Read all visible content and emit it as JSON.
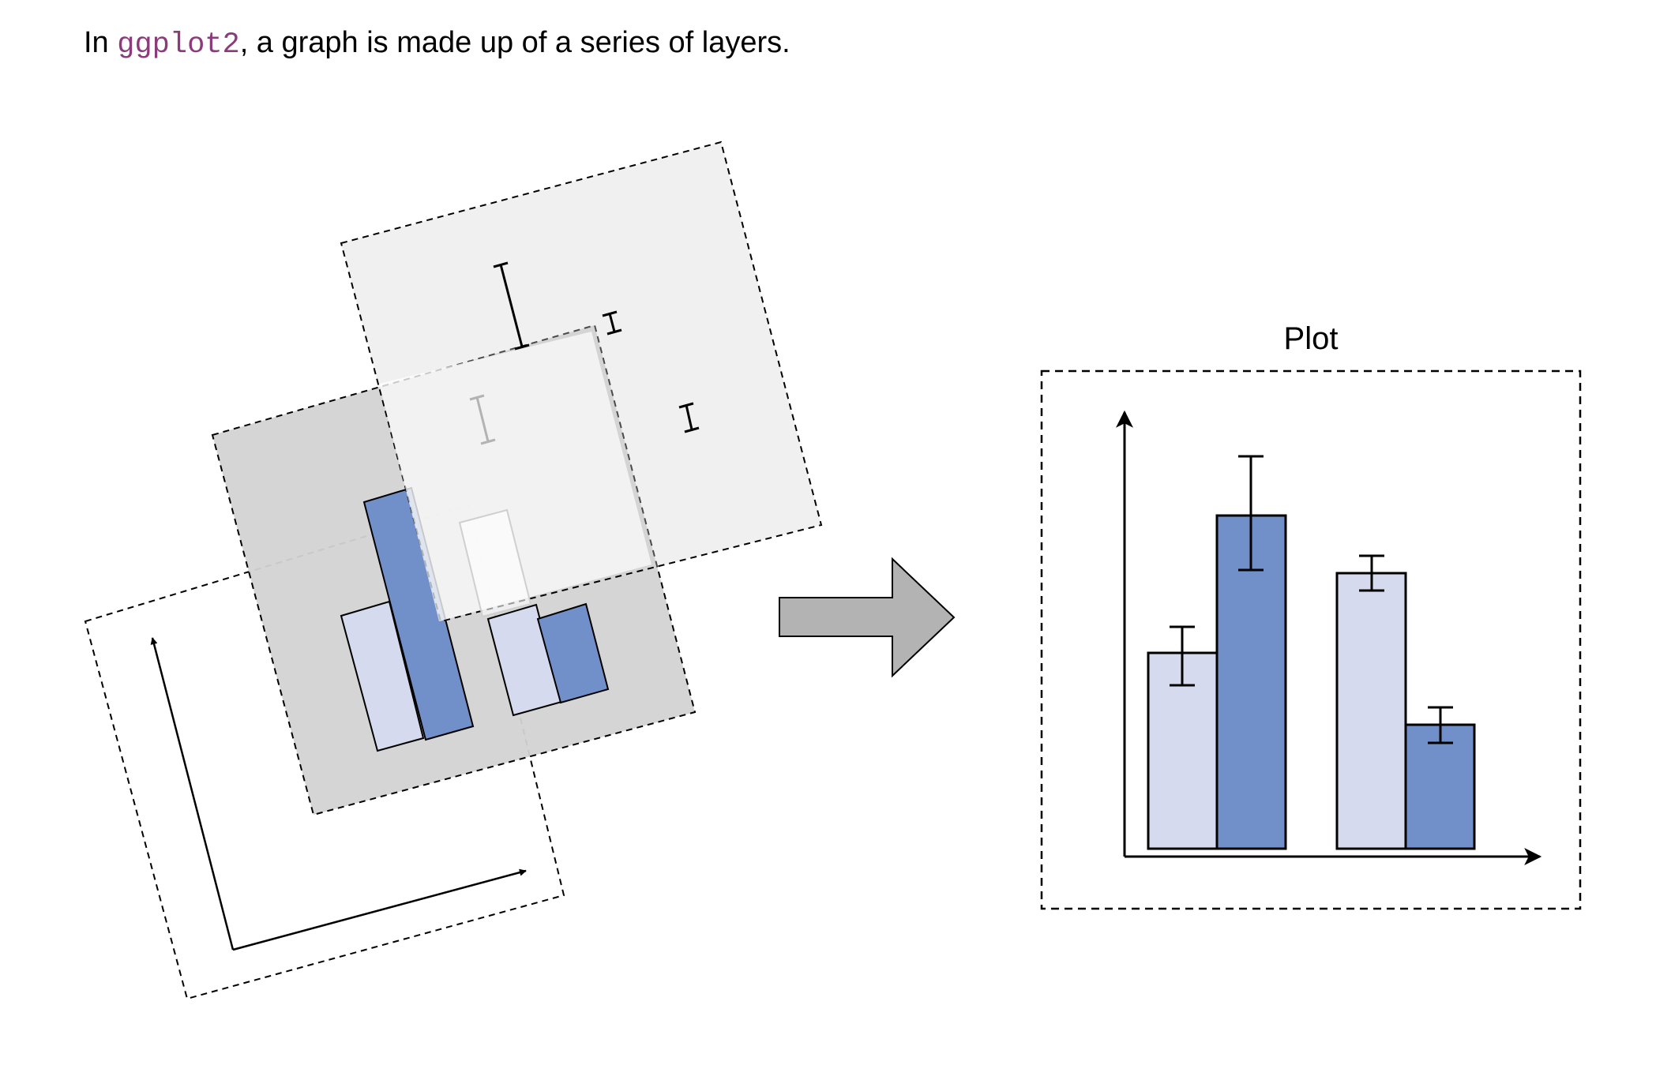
{
  "intro": {
    "prefix": "In ",
    "code": "ggplot2",
    "suffix": ", a graph is made up of a series of layers."
  },
  "plot": {
    "title": "Plot"
  },
  "colors": {
    "code": "#8b3a7a",
    "bar_light": "#d6daee",
    "bar_dark": "#7190c9",
    "layer_fill": "#d3d3d3",
    "arrow_fill": "#b3b3b3"
  }
}
